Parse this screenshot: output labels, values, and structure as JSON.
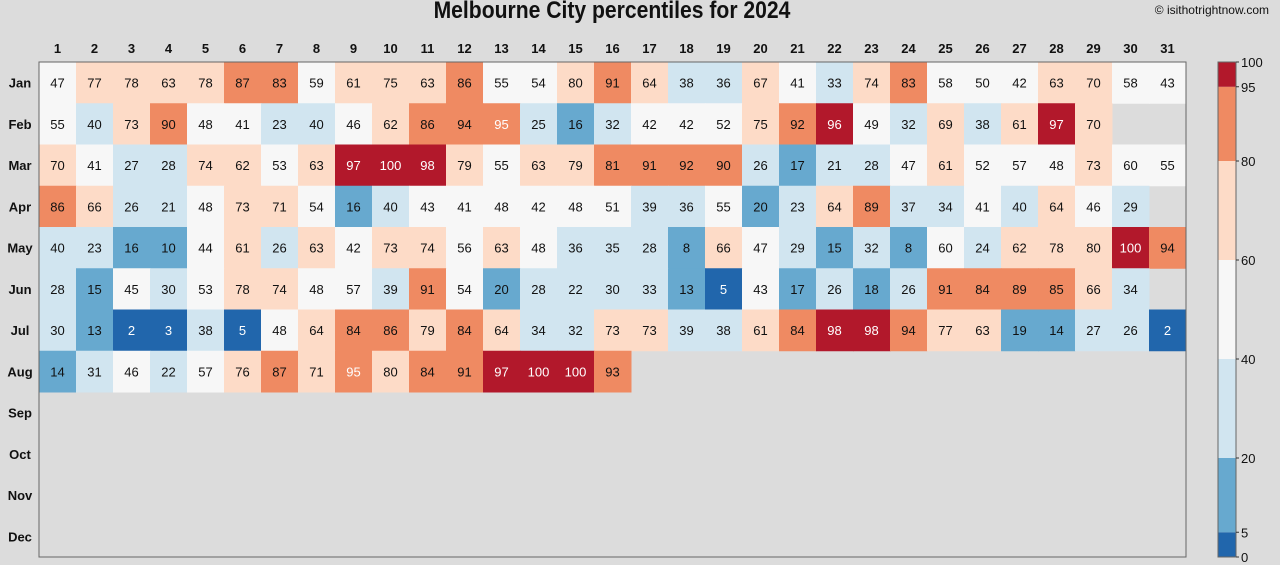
{
  "chart_data": {
    "type": "heatmap",
    "title": "Melbourne City percentiles for 2024",
    "copyright": "© isithotrightnow.com",
    "days": [
      "1",
      "2",
      "3",
      "4",
      "5",
      "6",
      "7",
      "8",
      "9",
      "10",
      "11",
      "12",
      "13",
      "14",
      "15",
      "16",
      "17",
      "18",
      "19",
      "20",
      "21",
      "22",
      "23",
      "24",
      "25",
      "26",
      "27",
      "28",
      "29",
      "30",
      "31"
    ],
    "months": [
      "Jan",
      "Feb",
      "Mar",
      "Apr",
      "May",
      "Jun",
      "Jul",
      "Aug",
      "Sep",
      "Oct",
      "Nov",
      "Dec"
    ],
    "values": [
      [
        47,
        77,
        78,
        63,
        78,
        87,
        83,
        59,
        61,
        75,
        63,
        86,
        55,
        54,
        80,
        91,
        64,
        38,
        36,
        67,
        41,
        33,
        74,
        83,
        58,
        50,
        42,
        63,
        70,
        58,
        43
      ],
      [
        55,
        40,
        73,
        90,
        48,
        41,
        23,
        40,
        46,
        62,
        86,
        94,
        95,
        25,
        16,
        32,
        42,
        42,
        52,
        75,
        92,
        96,
        49,
        32,
        69,
        38,
        61,
        97,
        70,
        null,
        null
      ],
      [
        70,
        41,
        27,
        28,
        74,
        62,
        53,
        63,
        97,
        100,
        98,
        79,
        55,
        63,
        79,
        81,
        91,
        92,
        90,
        26,
        17,
        21,
        28,
        47,
        61,
        52,
        57,
        48,
        73,
        60,
        55
      ],
      [
        86,
        66,
        26,
        21,
        48,
        73,
        71,
        54,
        16,
        40,
        43,
        41,
        48,
        42,
        48,
        51,
        39,
        36,
        55,
        20,
        23,
        64,
        89,
        37,
        34,
        41,
        40,
        64,
        46,
        29,
        null
      ],
      [
        40,
        23,
        16,
        10,
        44,
        61,
        26,
        63,
        42,
        73,
        74,
        56,
        63,
        48,
        36,
        35,
        28,
        8,
        66,
        47,
        29,
        15,
        32,
        8,
        60,
        24,
        62,
        78,
        80,
        100,
        94
      ],
      [
        28,
        15,
        45,
        30,
        53,
        78,
        74,
        48,
        57,
        39,
        91,
        54,
        20,
        28,
        22,
        30,
        33,
        13,
        5,
        43,
        17,
        26,
        18,
        26,
        91,
        84,
        89,
        85,
        66,
        34,
        null
      ],
      [
        30,
        13,
        2,
        3,
        38,
        5,
        48,
        64,
        84,
        86,
        79,
        84,
        64,
        34,
        32,
        73,
        73,
        39,
        38,
        61,
        84,
        98,
        98,
        94,
        77,
        63,
        19,
        14,
        27,
        26,
        2
      ],
      [
        14,
        31,
        46,
        22,
        57,
        76,
        87,
        71,
        95,
        80,
        84,
        91,
        97,
        100,
        100,
        93,
        null,
        null,
        null,
        null,
        null,
        null,
        null,
        null,
        null,
        null,
        null,
        null,
        null,
        null,
        null
      ],
      [],
      [],
      [],
      []
    ],
    "color_bins": [
      {
        "min": 0,
        "max": 5,
        "color": "#2166ac"
      },
      {
        "min": 5,
        "max": 20,
        "color": "#67a9cf"
      },
      {
        "min": 20,
        "max": 40,
        "color": "#d1e5f0"
      },
      {
        "min": 40,
        "max": 60,
        "color": "#f7f7f7"
      },
      {
        "min": 60,
        "max": 80,
        "color": "#fddbc7"
      },
      {
        "min": 80,
        "max": 95,
        "color": "#ef8a62"
      },
      {
        "min": 95,
        "max": 100,
        "color": "#b2182b"
      }
    ],
    "legend_ticks": [
      0,
      5,
      20,
      40,
      60,
      80,
      95,
      100
    ],
    "grid": false,
    "legend_placement": "right"
  }
}
